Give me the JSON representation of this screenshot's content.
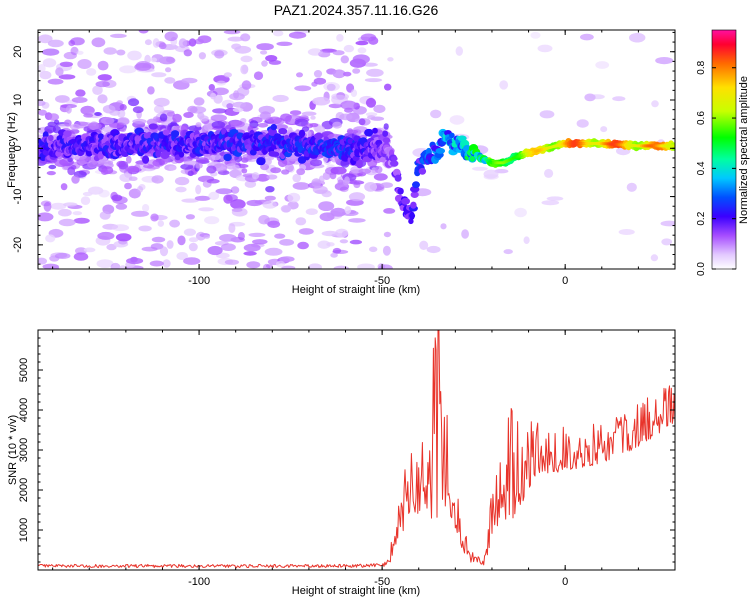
{
  "chart_data": [
    {
      "type": "heatmap",
      "title": "PAZ1.2024.357.11.16.G26",
      "xlabel": "Height of straight line (km)",
      "ylabel": "Frequency (Hz)",
      "xlim": [
        -144,
        30
      ],
      "ylim": [
        -25,
        24.5
      ],
      "xticks": [
        "-100",
        "-50",
        "0"
      ],
      "yticks": [
        "-20",
        "-10",
        "0",
        "10",
        "20"
      ],
      "colorbar": {
        "label": "Normalized spectral amplitude",
        "range": [
          0,
          0.95
        ],
        "ticks": [
          "0.0",
          "0.2",
          "0.4",
          "0.6",
          "0.8"
        ]
      },
      "ridge": {
        "description_points": [
          [
            -144,
            0
          ],
          [
            -120,
            1
          ],
          [
            -100,
            1
          ],
          [
            -80,
            1
          ],
          [
            -60,
            0
          ],
          [
            -50,
            0
          ],
          [
            -47,
            -2
          ],
          [
            -45,
            -10
          ],
          [
            -42,
            -14
          ],
          [
            -40,
            -3
          ],
          [
            -36,
            -1
          ],
          [
            -33,
            2
          ],
          [
            -30,
            1
          ],
          [
            -28,
            0
          ],
          [
            -25,
            -1
          ],
          [
            -20,
            -3
          ],
          [
            -17,
            -3
          ],
          [
            -14,
            -2
          ],
          [
            -10,
            -1
          ],
          [
            -5,
            0
          ],
          [
            0,
            1
          ],
          [
            10,
            1
          ],
          [
            20,
            0.5
          ],
          [
            30,
            0.5
          ]
        ],
        "peak_amplitude": [
          [
            -144,
            0.2
          ],
          [
            -60,
            0.25
          ],
          [
            -48,
            0.15
          ],
          [
            -36,
            0.3
          ],
          [
            -28,
            0.4
          ],
          [
            -18,
            0.6
          ],
          [
            -8,
            0.75
          ],
          [
            0,
            0.85
          ],
          [
            15,
            0.85
          ],
          [
            30,
            0.8
          ]
        ]
      }
    },
    {
      "type": "line",
      "xlabel": "Height of straight line (km)",
      "ylabel": "SNR (10 * v/v)",
      "xlim": [
        -144,
        30
      ],
      "ylim": [
        0,
        6000
      ],
      "xticks": [
        "-100",
        "-50",
        "0"
      ],
      "yticks": [
        "1000",
        "2000",
        "3000",
        "4000",
        "5000"
      ],
      "series_color": "#e8332a",
      "envelope": {
        "x": [
          -144,
          -100,
          -60,
          -50,
          -48,
          -46,
          -44,
          -42,
          -40,
          -38,
          -36,
          -35,
          -34,
          -32,
          -30,
          -28,
          -26,
          -24,
          -22,
          -20,
          -18,
          -16,
          -14,
          -12,
          -10,
          -5,
          0,
          5,
          10,
          15,
          20,
          25,
          30
        ],
        "mean": [
          100,
          100,
          100,
          120,
          200,
          1100,
          1500,
          1800,
          2100,
          2200,
          2500,
          2700,
          2500,
          2200,
          1500,
          700,
          300,
          250,
          200,
          1200,
          1700,
          1900,
          2100,
          2200,
          2500,
          2800,
          2800,
          2900,
          3000,
          3200,
          3400,
          3700,
          4000
        ],
        "spread": [
          80,
          80,
          80,
          100,
          200,
          900,
          1200,
          1300,
          1600,
          1700,
          3200,
          3500,
          2800,
          1800,
          1100,
          500,
          250,
          200,
          200,
          900,
          1200,
          1500,
          2000,
          1400,
          1300,
          900,
          800,
          800,
          800,
          800,
          800,
          800,
          700
        ]
      }
    }
  ]
}
